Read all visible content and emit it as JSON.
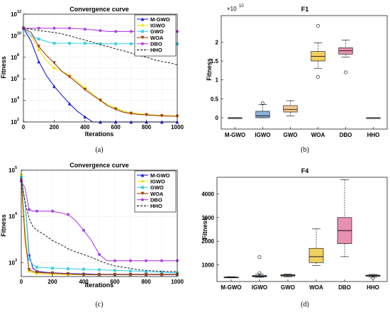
{
  "colors": {
    "mgwo": "#1a1ae0",
    "igwo": "#f0e010",
    "gwo": "#40d0e8",
    "woa": "#a04010",
    "dbo": "#b040e0",
    "hho": "#000000",
    "iqr_blue": "#8fb0d8",
    "iqr_orange": "#f2c890",
    "iqr_yellow": "#f0d060",
    "iqr_pink": "#e890b0",
    "iqr_green": "#a8d8a0"
  },
  "series_names": [
    "M-GWO",
    "IGWO",
    "GWO",
    "WOA",
    "DBO",
    "HHO"
  ],
  "chart_data": [
    {
      "id": "a",
      "type": "line",
      "title": "Convergence curve",
      "xlabel": "Iterations",
      "ylabel": "Fitness",
      "caption": "(a)",
      "yscale": "log",
      "xlim": [
        0,
        1000
      ],
      "ylim": [
        100,
        1000000000000
      ],
      "xticks": [
        "0",
        "200",
        "400",
        "600",
        "800",
        "1000"
      ],
      "yticks": [
        "10",
        "10",
        "10",
        "10",
        "10",
        "10"
      ],
      "yexp": [
        "2",
        "4",
        "6",
        "8",
        "10",
        "12"
      ],
      "legend_position": "top-right",
      "x": [
        0,
        50,
        100,
        150,
        200,
        250,
        300,
        350,
        400,
        450,
        500,
        550,
        600,
        650,
        700,
        750,
        800,
        850,
        900,
        950,
        1000
      ],
      "series": [
        {
          "name": "M-GWO",
          "color_key": "mgwo",
          "marker": "triangle",
          "values": [
            50000000000,
            3000000000,
            40000000,
            2000000,
            200000,
            30000,
            5000,
            1000,
            300,
            100,
            100,
            100,
            100,
            100,
            100,
            100,
            100,
            100,
            100,
            100,
            100
          ]
        },
        {
          "name": "IGWO",
          "color_key": "igwo",
          "marker": "diamond",
          "values": [
            50000000000,
            10000000000,
            500000000,
            50000000,
            10000000,
            5000000,
            2000000,
            600000,
            150000,
            40000,
            10000,
            4000,
            2000,
            1000,
            700,
            600,
            500,
            450,
            400,
            380,
            350
          ]
        },
        {
          "name": "GWO",
          "color_key": "gwo",
          "marker": "square",
          "values": [
            50000000000,
            10000000000,
            5000000000,
            3000000000,
            2000000000,
            2000000000,
            2000000000,
            2000000000,
            2000000000,
            1800000000,
            1800000000,
            1800000000,
            1800000000,
            1800000000,
            1800000000,
            1800000000,
            1800000000,
            1800000000,
            1800000000,
            1800000000,
            1800000000
          ]
        },
        {
          "name": "WOA",
          "color_key": "woa",
          "marker": "triangle-down",
          "values": [
            50000000000,
            20000000000,
            1000000000,
            150000000,
            30000000,
            5000000,
            1500000,
            400000,
            100000,
            30000,
            10000,
            3000,
            1500,
            800,
            600,
            500,
            450,
            400,
            370,
            350,
            330
          ]
        },
        {
          "name": "DBO",
          "color_key": "dbo",
          "marker": "circle",
          "values": [
            50000000000,
            50000000000,
            50000000000,
            50000000000,
            50000000000,
            50000000000,
            50000000000,
            45000000000,
            40000000000,
            35000000000,
            30000000000,
            25000000000,
            25000000000,
            25000000000,
            25000000000,
            25000000000,
            25000000000,
            25000000000,
            25000000000,
            25000000000,
            25000000000
          ]
        },
        {
          "name": "HHO",
          "color_key": "hho",
          "marker": "none",
          "values": [
            50000000000,
            40000000000,
            30000000000,
            25000000000,
            20000000000,
            15000000000,
            10000000000,
            6000000000,
            4000000000,
            2500000000,
            1500000000,
            1000000000,
            600000000,
            400000000,
            250000000,
            150000000,
            100000000,
            60000000,
            40000000,
            30000000,
            20000000
          ]
        }
      ]
    },
    {
      "id": "b",
      "type": "box",
      "title": "F1",
      "ylabel": "Fitness",
      "caption": "(b)",
      "multiplier": "×10",
      "multiplier_exp": "10",
      "ylim": [
        -0.3,
        2.7
      ],
      "yticks": [
        0,
        0.5,
        1,
        1.5,
        2
      ],
      "ytick_labels": [
        "0",
        "0.5",
        "1",
        "1.5",
        "2"
      ],
      "categories": [
        "M-GWO",
        "IGWO",
        "GWO",
        "WOA",
        "DBO",
        "HHO"
      ],
      "boxes": [
        {
          "color_key": "iqr_blue",
          "min": 0,
          "q1": 0,
          "median": 0,
          "q3": 0,
          "max": 0,
          "outliers": []
        },
        {
          "color_key": "iqr_blue",
          "min": 0,
          "q1": 0,
          "median": 0.05,
          "q3": 0.17,
          "max": 0.35,
          "outliers": [
            0.38
          ]
        },
        {
          "color_key": "iqr_orange",
          "min": 0.05,
          "q1": 0.15,
          "median": 0.22,
          "q3": 0.32,
          "max": 0.45,
          "outliers": []
        },
        {
          "color_key": "iqr_yellow",
          "min": 1.3,
          "q1": 1.5,
          "median": 1.62,
          "q3": 1.75,
          "max": 1.98,
          "outliers": [
            1.08,
            2.43
          ]
        },
        {
          "color_key": "iqr_pink",
          "min": 1.6,
          "q1": 1.68,
          "median": 1.77,
          "q3": 1.85,
          "max": 2.05,
          "outliers": [
            1.2
          ]
        },
        {
          "color_key": "iqr_green",
          "min": 0,
          "q1": 0,
          "median": 0,
          "q3": 0,
          "max": 0,
          "outliers": []
        }
      ]
    },
    {
      "id": "c",
      "type": "line",
      "title": "Convergence curve",
      "xlabel": "Iterations",
      "ylabel": "Fitness",
      "caption": "(c)",
      "yscale": "log",
      "xlim": [
        0,
        1000
      ],
      "ylim": [
        500,
        100000
      ],
      "xticks": [
        "0",
        "200",
        "400",
        "600",
        "800",
        "1000"
      ],
      "yticks": [
        "10",
        "10",
        "10"
      ],
      "yexp": [
        "3",
        "4",
        "5"
      ],
      "ytick_values": [
        1000,
        10000,
        100000
      ],
      "legend_position": "top-right",
      "x": [
        0,
        25,
        50,
        75,
        100,
        150,
        200,
        250,
        300,
        350,
        400,
        450,
        500,
        550,
        600,
        650,
        700,
        750,
        800,
        850,
        900,
        950,
        1000
      ],
      "series": [
        {
          "name": "M-GWO",
          "color_key": "mgwo",
          "marker": "triangle",
          "values": [
            60000,
            20000,
            1500,
            750,
            650,
            620,
            600,
            590,
            580,
            575,
            570,
            565,
            560,
            560,
            560,
            560,
            560,
            560,
            560,
            560,
            560,
            560,
            560
          ]
        },
        {
          "name": "IGWO",
          "color_key": "igwo",
          "marker": "diamond",
          "values": [
            80000,
            5000,
            650,
            600,
            580,
            570,
            560,
            555,
            550,
            550,
            550,
            550,
            550,
            550,
            550,
            550,
            550,
            550,
            550,
            550,
            550,
            550,
            550
          ]
        },
        {
          "name": "GWO",
          "color_key": "gwo",
          "marker": "square",
          "values": [
            70000,
            20000,
            1200,
            900,
            800,
            780,
            760,
            750,
            740,
            730,
            720,
            710,
            700,
            690,
            680,
            670,
            660,
            650,
            640,
            630,
            620,
            610,
            600
          ]
        },
        {
          "name": "WOA",
          "color_key": "woa",
          "marker": "triangle-down",
          "values": [
            60000,
            3000,
            700,
            640,
            620,
            600,
            590,
            580,
            570,
            560,
            555,
            550,
            550,
            550,
            550,
            550,
            550,
            550,
            550,
            550,
            550,
            550,
            550
          ]
        },
        {
          "name": "DBO",
          "color_key": "dbo",
          "marker": "circle",
          "values": [
            60000,
            40000,
            14000,
            13000,
            13000,
            13000,
            13000,
            12000,
            11000,
            8000,
            5000,
            3000,
            1500,
            1100,
            1100,
            1100,
            1100,
            1100,
            1100,
            1100,
            1100,
            1100,
            1100
          ]
        },
        {
          "name": "HHO",
          "color_key": "hho",
          "marker": "none",
          "values": [
            60000,
            20000,
            9000,
            6000,
            5000,
            4000,
            3000,
            2500,
            2000,
            1700,
            1500,
            1300,
            1100,
            950,
            850,
            800,
            750,
            700,
            680,
            660,
            650,
            640,
            640
          ]
        }
      ]
    },
    {
      "id": "d",
      "type": "box",
      "title": "F4",
      "ylabel": "Fitness",
      "caption": "(d)",
      "ylim": [
        300,
        4700
      ],
      "yticks": [
        1000,
        2000,
        3000,
        4000
      ],
      "ytick_labels": [
        "1000",
        "2000",
        "3000",
        "4000"
      ],
      "categories": [
        "M-GWO",
        "IGWO",
        "GWO",
        "WOA",
        "DBO",
        "HHO"
      ],
      "boxes": [
        {
          "color_key": "iqr_blue",
          "min": 460,
          "q1": 470,
          "median": 480,
          "q3": 490,
          "max": 500,
          "outliers": []
        },
        {
          "color_key": "iqr_blue",
          "min": 480,
          "q1": 500,
          "median": 520,
          "q3": 560,
          "max": 620,
          "outliers": [
            650,
            1330
          ]
        },
        {
          "color_key": "iqr_orange",
          "min": 500,
          "q1": 530,
          "median": 560,
          "q3": 590,
          "max": 620,
          "outliers": []
        },
        {
          "color_key": "iqr_yellow",
          "min": 980,
          "q1": 1100,
          "median": 1350,
          "q3": 1700,
          "max": 2520,
          "outliers": []
        },
        {
          "color_key": "iqr_pink",
          "min": 1350,
          "q1": 1900,
          "median": 2450,
          "q3": 3000,
          "max": 4600,
          "outliers": []
        },
        {
          "color_key": "iqr_green",
          "min": 480,
          "q1": 520,
          "median": 545,
          "q3": 570,
          "max": 600,
          "outliers": [
            450
          ]
        }
      ]
    }
  ]
}
